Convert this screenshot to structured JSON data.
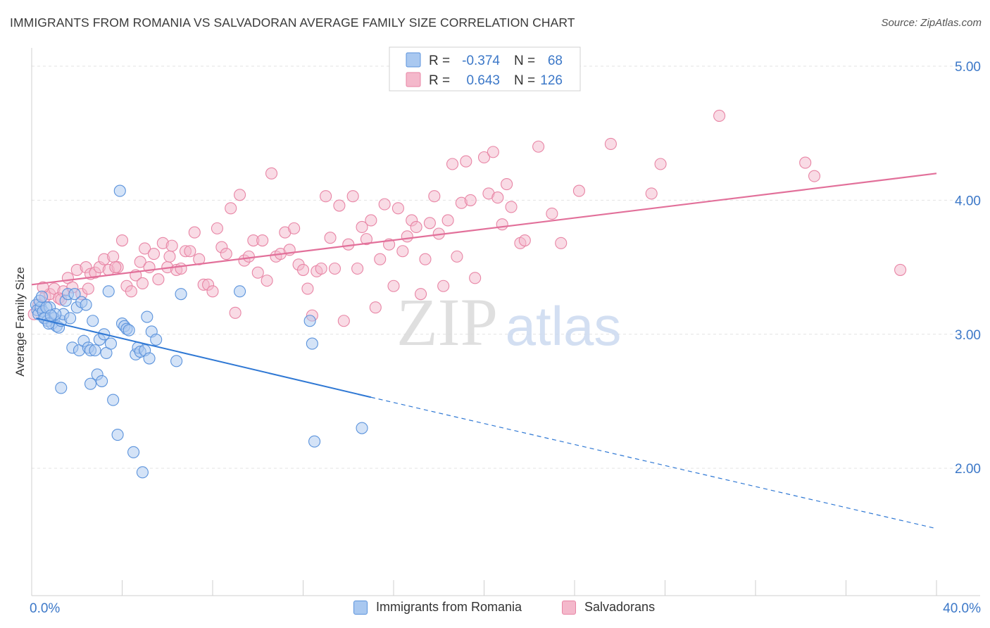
{
  "title": "IMMIGRANTS FROM ROMANIA VS SALVADORAN AVERAGE FAMILY SIZE CORRELATION CHART",
  "source": "Source: ZipAtlas.com",
  "watermark": {
    "zip": "ZIP",
    "atlas": "atlas"
  },
  "legend_top": [
    {
      "r_label": "R =",
      "r_value": "-0.374",
      "n_label": "N =",
      "n_value": "68"
    },
    {
      "r_label": "R =",
      "r_value": "0.643",
      "n_label": "N =",
      "n_value": "126"
    }
  ],
  "colors": {
    "blue_fill": "#a9c8f0",
    "blue_stroke": "#5b93dc",
    "blue_line": "#2f78d4",
    "pink_fill": "#f4b8cb",
    "pink_stroke": "#e885a5",
    "pink_line": "#e2709a",
    "axis_text": "#3c78c8"
  },
  "chart_data": {
    "type": "scatter",
    "title": "IMMIGRANTS FROM ROMANIA VS SALVADORAN AVERAGE FAMILY SIZE CORRELATION CHART",
    "xlabel": "",
    "ylabel": "Average Family Size",
    "xlim": [
      0,
      40
    ],
    "ylim": [
      1.05,
      5.1
    ],
    "x_tick_labels": [
      "0.0%",
      "40.0%"
    ],
    "y_ticks": [
      2.0,
      3.0,
      4.0,
      5.0
    ],
    "y_tick_labels": [
      "2.00",
      "3.00",
      "4.00",
      "5.00"
    ],
    "grid": true,
    "legend_position": "top-center",
    "series": [
      {
        "name": "Immigrants from Romania",
        "r": -0.374,
        "n": 68,
        "trend": {
          "x0": 0.2,
          "y0": 3.12,
          "x1": 15.0,
          "y1": 2.53,
          "dash_x1": 40.0,
          "dash_y1": 1.55
        },
        "points": [
          [
            0.2,
            3.22
          ],
          [
            0.25,
            3.18
          ],
          [
            0.3,
            3.15
          ],
          [
            0.4,
            3.2
          ],
          [
            0.5,
            3.17
          ],
          [
            0.6,
            3.12
          ],
          [
            0.7,
            3.1
          ],
          [
            0.8,
            3.2
          ],
          [
            0.9,
            3.08
          ],
          [
            1.0,
            3.12
          ],
          [
            1.1,
            3.06
          ],
          [
            1.2,
            3.05
          ],
          [
            1.3,
            3.1
          ],
          [
            1.4,
            3.15
          ],
          [
            1.5,
            3.25
          ],
          [
            1.6,
            3.3
          ],
          [
            1.7,
            3.12
          ],
          [
            1.8,
            2.9
          ],
          [
            1.9,
            3.3
          ],
          [
            2.0,
            3.2
          ],
          [
            2.1,
            2.88
          ],
          [
            2.2,
            3.24
          ],
          [
            2.3,
            2.95
          ],
          [
            2.4,
            3.22
          ],
          [
            2.5,
            2.9
          ],
          [
            2.6,
            2.88
          ],
          [
            2.7,
            3.1
          ],
          [
            2.8,
            2.88
          ],
          [
            2.9,
            2.7
          ],
          [
            3.0,
            2.96
          ],
          [
            3.1,
            2.65
          ],
          [
            3.2,
            3.0
          ],
          [
            3.3,
            2.86
          ],
          [
            3.4,
            3.32
          ],
          [
            3.5,
            2.93
          ],
          [
            3.6,
            2.51
          ],
          [
            3.8,
            2.25
          ],
          [
            3.9,
            4.07
          ],
          [
            4.0,
            3.08
          ],
          [
            4.1,
            3.06
          ],
          [
            4.2,
            3.04
          ],
          [
            4.3,
            3.03
          ],
          [
            4.5,
            2.12
          ],
          [
            4.6,
            2.85
          ],
          [
            4.7,
            2.9
          ],
          [
            4.8,
            2.87
          ],
          [
            4.9,
            1.97
          ],
          [
            5.0,
            2.88
          ],
          [
            5.1,
            3.13
          ],
          [
            5.2,
            2.82
          ],
          [
            5.3,
            3.02
          ],
          [
            5.5,
            2.96
          ],
          [
            6.4,
            2.8
          ],
          [
            6.6,
            3.3
          ],
          [
            2.6,
            2.63
          ],
          [
            1.3,
            2.6
          ],
          [
            9.2,
            3.32
          ],
          [
            12.3,
            3.1
          ],
          [
            12.4,
            2.93
          ],
          [
            12.5,
            2.2
          ],
          [
            14.6,
            2.3
          ],
          [
            0.35,
            3.25
          ],
          [
            0.55,
            3.12
          ],
          [
            0.75,
            3.08
          ],
          [
            1.05,
            3.15
          ],
          [
            0.45,
            3.28
          ],
          [
            0.65,
            3.2
          ],
          [
            0.85,
            3.14
          ]
        ]
      },
      {
        "name": "Salvadorans",
        "r": 0.643,
        "n": 126,
        "trend": {
          "x0": 0.0,
          "y0": 3.37,
          "x1": 40.0,
          "y1": 4.2
        },
        "points": [
          [
            0.1,
            3.15
          ],
          [
            0.3,
            3.22
          ],
          [
            0.6,
            3.28
          ],
          [
            0.8,
            3.3
          ],
          [
            1.0,
            3.34
          ],
          [
            1.2,
            3.27
          ],
          [
            1.4,
            3.32
          ],
          [
            1.6,
            3.42
          ],
          [
            1.8,
            3.35
          ],
          [
            2.0,
            3.48
          ],
          [
            2.2,
            3.3
          ],
          [
            2.4,
            3.5
          ],
          [
            2.6,
            3.45
          ],
          [
            2.8,
            3.46
          ],
          [
            3.0,
            3.5
          ],
          [
            3.2,
            3.56
          ],
          [
            3.4,
            3.48
          ],
          [
            3.6,
            3.58
          ],
          [
            3.8,
            3.5
          ],
          [
            4.0,
            3.7
          ],
          [
            4.2,
            3.36
          ],
          [
            4.4,
            3.32
          ],
          [
            4.6,
            3.44
          ],
          [
            4.8,
            3.54
          ],
          [
            5.0,
            3.64
          ],
          [
            5.2,
            3.5
          ],
          [
            5.4,
            3.6
          ],
          [
            5.6,
            3.41
          ],
          [
            5.8,
            3.68
          ],
          [
            6.0,
            3.5
          ],
          [
            6.2,
            3.66
          ],
          [
            6.4,
            3.48
          ],
          [
            6.6,
            3.49
          ],
          [
            6.8,
            3.62
          ],
          [
            7.0,
            3.62
          ],
          [
            7.2,
            3.76
          ],
          [
            7.4,
            3.56
          ],
          [
            7.6,
            3.37
          ],
          [
            7.8,
            3.37
          ],
          [
            8.0,
            3.32
          ],
          [
            8.2,
            3.79
          ],
          [
            8.4,
            3.65
          ],
          [
            8.6,
            3.6
          ],
          [
            8.8,
            3.94
          ],
          [
            9.0,
            3.16
          ],
          [
            9.2,
            4.04
          ],
          [
            9.4,
            3.55
          ],
          [
            9.6,
            3.58
          ],
          [
            9.8,
            3.7
          ],
          [
            10.0,
            3.46
          ],
          [
            10.2,
            3.7
          ],
          [
            10.4,
            3.4
          ],
          [
            10.6,
            4.2
          ],
          [
            10.8,
            3.58
          ],
          [
            11.0,
            3.6
          ],
          [
            11.2,
            3.76
          ],
          [
            11.4,
            3.63
          ],
          [
            11.6,
            3.79
          ],
          [
            11.8,
            3.52
          ],
          [
            12.0,
            3.48
          ],
          [
            12.2,
            3.34
          ],
          [
            12.4,
            3.14
          ],
          [
            12.6,
            3.47
          ],
          [
            12.8,
            3.49
          ],
          [
            13.0,
            4.03
          ],
          [
            13.2,
            3.72
          ],
          [
            13.4,
            3.49
          ],
          [
            13.6,
            3.96
          ],
          [
            13.8,
            3.1
          ],
          [
            14.0,
            3.67
          ],
          [
            14.2,
            4.03
          ],
          [
            14.4,
            3.49
          ],
          [
            14.6,
            3.8
          ],
          [
            14.8,
            3.71
          ],
          [
            15.0,
            3.85
          ],
          [
            15.2,
            3.2
          ],
          [
            15.4,
            3.56
          ],
          [
            15.6,
            3.97
          ],
          [
            15.8,
            3.67
          ],
          [
            16.0,
            3.36
          ],
          [
            16.2,
            3.94
          ],
          [
            16.4,
            3.62
          ],
          [
            16.6,
            3.73
          ],
          [
            16.8,
            3.85
          ],
          [
            17.0,
            3.8
          ],
          [
            17.2,
            3.3
          ],
          [
            17.4,
            3.56
          ],
          [
            17.6,
            3.83
          ],
          [
            17.8,
            4.03
          ],
          [
            18.0,
            3.75
          ],
          [
            18.2,
            3.36
          ],
          [
            18.4,
            3.85
          ],
          [
            18.6,
            4.27
          ],
          [
            18.8,
            3.58
          ],
          [
            19.0,
            3.98
          ],
          [
            19.2,
            4.29
          ],
          [
            19.4,
            4.0
          ],
          [
            19.6,
            3.42
          ],
          [
            20.0,
            4.32
          ],
          [
            20.2,
            4.05
          ],
          [
            20.4,
            4.36
          ],
          [
            20.6,
            4.02
          ],
          [
            20.8,
            3.82
          ],
          [
            21.0,
            4.12
          ],
          [
            21.2,
            3.95
          ],
          [
            21.6,
            3.68
          ],
          [
            21.8,
            3.7
          ],
          [
            22.4,
            4.4
          ],
          [
            23.0,
            3.9
          ],
          [
            23.4,
            3.68
          ],
          [
            24.2,
            4.07
          ],
          [
            25.6,
            4.42
          ],
          [
            27.4,
            4.05
          ],
          [
            27.8,
            4.27
          ],
          [
            30.4,
            4.63
          ],
          [
            34.2,
            4.28
          ],
          [
            34.6,
            4.18
          ],
          [
            38.4,
            3.48
          ],
          [
            0.5,
            3.35
          ],
          [
            1.3,
            3.26
          ],
          [
            2.5,
            3.34
          ],
          [
            3.7,
            3.5
          ],
          [
            4.9,
            3.38
          ],
          [
            6.1,
            3.58
          ]
        ]
      }
    ]
  },
  "legend_bottom": [
    "Immigrants from Romania",
    "Salvadorans"
  ]
}
